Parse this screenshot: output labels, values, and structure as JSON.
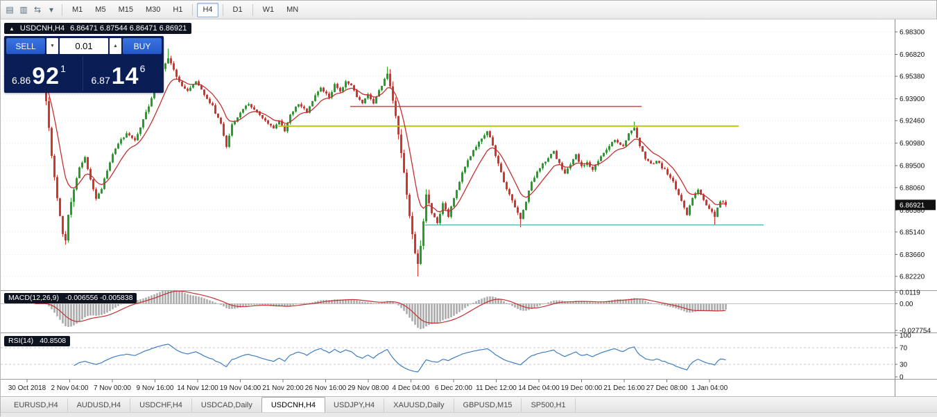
{
  "window": {
    "app_icon_glyph": "▤"
  },
  "toolbar": {
    "icons": [
      {
        "name": "charts-icon",
        "glyph": "▥"
      },
      {
        "name": "cycle-symbols-icon",
        "glyph": "⇆"
      },
      {
        "name": "dropdown-caret-icon",
        "glyph": "▾"
      }
    ],
    "timeframes": [
      {
        "label": "M1",
        "active": false
      },
      {
        "label": "M5",
        "active": false
      },
      {
        "label": "M15",
        "active": false
      },
      {
        "label": "M30",
        "active": false
      },
      {
        "label": "H1",
        "active": false
      },
      {
        "label": "H4",
        "active": true
      },
      {
        "label": "D1",
        "active": false
      },
      {
        "label": "W1",
        "active": false
      },
      {
        "label": "MN",
        "active": false
      }
    ]
  },
  "symbol_header": {
    "collapse_glyph": "▲",
    "symbol": "USDCNH,H4",
    "ohlc": "6.86471 6.87544 6.86471 6.86921"
  },
  "trade_panel": {
    "sell_label": "SELL",
    "buy_label": "BUY",
    "volume": "0.01",
    "spin_down_glyph": "▼",
    "spin_up_glyph": "▲",
    "sell_price": {
      "small": "6.86",
      "big": "92",
      "sup": "1"
    },
    "buy_price": {
      "small": "6.87",
      "big": "14",
      "sup": "6"
    }
  },
  "indicators": {
    "macd": {
      "name": "MACD(12,26,9)",
      "values": "-0.006556 -0.005838",
      "axis_labels": [
        "0.0119",
        "0.00",
        "-0.027754"
      ],
      "axis_values": [
        0.0119,
        0,
        -0.027754
      ]
    },
    "rsi": {
      "name": "RSI(14)",
      "value": "40.8508",
      "axis_labels": [
        "100",
        "70",
        "30",
        "0"
      ],
      "axis_values": [
        100,
        70,
        30,
        0
      ],
      "levels": [
        70,
        30
      ]
    }
  },
  "price_axis": {
    "labels": [
      "6.98300",
      "6.96820",
      "6.95380",
      "6.93900",
      "6.92460",
      "6.90980",
      "6.89500",
      "6.88060",
      "6.86580",
      "6.85140",
      "6.83660",
      "6.82220"
    ],
    "current": "6.86921"
  },
  "date_axis": {
    "labels": [
      "30 Oct 2018",
      "2 Nov 04:00",
      "7 Nov 00:00",
      "9 Nov 16:00",
      "14 Nov 12:00",
      "19 Nov 04:00",
      "21 Nov 20:00",
      "26 Nov 16:00",
      "29 Nov 08:00",
      "4 Dec 04:00",
      "6 Dec 20:00",
      "11 Dec 12:00",
      "14 Dec 04:00",
      "19 Dec 00:00",
      "21 Dec 16:00",
      "27 Dec 08:00",
      "1 Jan 04:00"
    ]
  },
  "tabs": [
    {
      "label": "EURUSD,H4",
      "active": false
    },
    {
      "label": "AUDUSD,H4",
      "active": false
    },
    {
      "label": "USDCHF,H4",
      "active": false
    },
    {
      "label": "USDCAD,Daily",
      "active": false
    },
    {
      "label": "USDCNH,H4",
      "active": true
    },
    {
      "label": "USDJPY,H4",
      "active": false
    },
    {
      "label": "XAUUSD,Daily",
      "active": false
    },
    {
      "label": "GBPUSD,M15",
      "active": false
    },
    {
      "label": "SP500,H1",
      "active": false
    }
  ],
  "colors": {
    "up": "#23a127",
    "down": "#d8332a",
    "ma": "#c62f2f",
    "macd_hist": "#ababab",
    "macd_signal": "#c62f2f",
    "macd_zero": "#c0c0c0",
    "rsi": "#3f7cc1",
    "rsi_level": "#c4c4de",
    "grid": "#e4e4e4",
    "hline_red": "#e03c3c",
    "hline_yellow": "#bcc41c",
    "hline_teal": "#35a3a9",
    "axis_line": "#8c8c8c",
    "divider": "#9a9a9a",
    "current_badge_bg": "#111111"
  },
  "chart_data": {
    "type": "candlestick",
    "symbol": "USDCNH",
    "timeframe": "H4",
    "bars": 250,
    "price_max": 6.983,
    "price_min": 6.8222,
    "current_price": 6.86921,
    "ma_period": 10,
    "macd_params": {
      "fast": 12,
      "slow": 26,
      "signal": 9
    },
    "rsi_period": 14,
    "anchors": [
      [
        0,
        6.948
      ],
      [
        2,
        6.955
      ],
      [
        4,
        6.938
      ],
      [
        6,
        6.902
      ],
      [
        8,
        6.874
      ],
      [
        10,
        6.85
      ],
      [
        11,
        6.846
      ],
      [
        12,
        6.862
      ],
      [
        14,
        6.88
      ],
      [
        16,
        6.894
      ],
      [
        18,
        6.9
      ],
      [
        20,
        6.886
      ],
      [
        22,
        6.874
      ],
      [
        24,
        6.88
      ],
      [
        26,
        6.892
      ],
      [
        28,
        6.902
      ],
      [
        30,
        6.91
      ],
      [
        33,
        6.916
      ],
      [
        36,
        6.912
      ],
      [
        38,
        6.92
      ],
      [
        40,
        6.93
      ],
      [
        43,
        6.944
      ],
      [
        46,
        6.958
      ],
      [
        48,
        6.966
      ],
      [
        50,
        6.958
      ],
      [
        52,
        6.95
      ],
      [
        55,
        6.944
      ],
      [
        58,
        6.95
      ],
      [
        61,
        6.942
      ],
      [
        64,
        6.934
      ],
      [
        67,
        6.922
      ],
      [
        69,
        6.908
      ],
      [
        71,
        6.922
      ],
      [
        74,
        6.93
      ],
      [
        77,
        6.936
      ],
      [
        80,
        6.93
      ],
      [
        83,
        6.924
      ],
      [
        86,
        6.92
      ],
      [
        88,
        6.924
      ],
      [
        90,
        6.918
      ],
      [
        92,
        6.928
      ],
      [
        95,
        6.936
      ],
      [
        98,
        6.93
      ],
      [
        100,
        6.938
      ],
      [
        103,
        6.946
      ],
      [
        106,
        6.94
      ],
      [
        108,
        6.948
      ],
      [
        110,
        6.944
      ],
      [
        112,
        6.95
      ],
      [
        114,
        6.948
      ],
      [
        116,
        6.94
      ],
      [
        118,
        6.936
      ],
      [
        120,
        6.942
      ],
      [
        122,
        6.936
      ],
      [
        124,
        6.944
      ],
      [
        126,
        6.952
      ],
      [
        127,
        6.956
      ],
      [
        129,
        6.938
      ],
      [
        131,
        6.916
      ],
      [
        133,
        6.89
      ],
      [
        135,
        6.862
      ],
      [
        137,
        6.838
      ],
      [
        138,
        6.83
      ],
      [
        139,
        6.842
      ],
      [
        141,
        6.876
      ],
      [
        143,
        6.864
      ],
      [
        145,
        6.858
      ],
      [
        147,
        6.87
      ],
      [
        149,
        6.862
      ],
      [
        151,
        6.874
      ],
      [
        154,
        6.89
      ],
      [
        157,
        6.902
      ],
      [
        160,
        6.91
      ],
      [
        163,
        6.918
      ],
      [
        165,
        6.908
      ],
      [
        167,
        6.896
      ],
      [
        169,
        6.884
      ],
      [
        171,
        6.876
      ],
      [
        173,
        6.868
      ],
      [
        175,
        6.86
      ],
      [
        177,
        6.872
      ],
      [
        179,
        6.884
      ],
      [
        182,
        6.894
      ],
      [
        185,
        6.9
      ],
      [
        187,
        6.904
      ],
      [
        189,
        6.896
      ],
      [
        191,
        6.89
      ],
      [
        193,
        6.896
      ],
      [
        195,
        6.902
      ],
      [
        197,
        6.894
      ],
      [
        199,
        6.898
      ],
      [
        201,
        6.892
      ],
      [
        203,
        6.898
      ],
      [
        206,
        6.906
      ],
      [
        209,
        6.912
      ],
      [
        212,
        6.908
      ],
      [
        214,
        6.916
      ],
      [
        216,
        6.92
      ],
      [
        218,
        6.908
      ],
      [
        220,
        6.9
      ],
      [
        222,
        6.896
      ],
      [
        224,
        6.898
      ],
      [
        226,
        6.894
      ],
      [
        228,
        6.89
      ],
      [
        230,
        6.884
      ],
      [
        232,
        6.876
      ],
      [
        234,
        6.868
      ],
      [
        235,
        6.863
      ],
      [
        237,
        6.874
      ],
      [
        239,
        6.88
      ],
      [
        241,
        6.872
      ],
      [
        243,
        6.866
      ],
      [
        245,
        6.862
      ],
      [
        247,
        6.872
      ],
      [
        249,
        6.8692
      ]
    ],
    "vol_zones": [
      [
        4,
        14,
        2.6
      ],
      [
        40,
        52,
        1.5
      ],
      [
        128,
        142,
        2.8
      ],
      [
        160,
        178,
        1.3
      ]
    ],
    "overrides": [
      [
        11,
        "low",
        6.843
      ],
      [
        48,
        "high",
        6.972
      ],
      [
        127,
        "high",
        6.96
      ],
      [
        138,
        "low",
        6.8222
      ],
      [
        175,
        "low",
        6.8545
      ],
      [
        216,
        "high",
        6.924
      ],
      [
        245,
        "low",
        6.856
      ]
    ],
    "hlines": [
      {
        "color_key": "hline_red",
        "price": 6.934,
        "from_bar": 114,
        "to_bar": 219,
        "width": 1.5
      },
      {
        "color_key": "hline_yellow",
        "price": 6.921,
        "from_bar": 88,
        "to_bar": 254,
        "width": 2
      },
      {
        "color_key": "hline_teal",
        "price": 6.856,
        "from_bar": 141,
        "to_bar": 263,
        "width": 1.2
      }
    ]
  }
}
